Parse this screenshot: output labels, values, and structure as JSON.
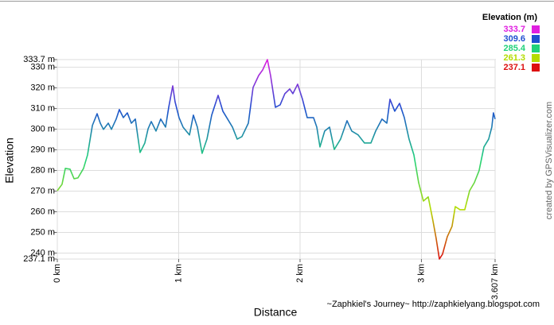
{
  "chart_data": {
    "type": "line",
    "y_label": "Elevation",
    "x_label": "Distance",
    "credit": "created by GPSVisualizer.com",
    "footer": "~Zaphkiel's Journey~ http://zaphkielyang.blogspot.com",
    "legend": {
      "title": "Elevation (m)",
      "items": [
        {
          "value": 333.7,
          "color": "#e020e0"
        },
        {
          "value": 309.6,
          "color": "#1f4fd0"
        },
        {
          "value": 285.4,
          "color": "#20d27a"
        },
        {
          "value": 261.3,
          "color": "#b4dc00"
        },
        {
          "value": 237.1,
          "color": "#dd1010"
        }
      ]
    },
    "xlim": [
      0,
      3.607
    ],
    "ylim": [
      237.1,
      333.7
    ],
    "grid": true,
    "xticks": [
      {
        "value": 0,
        "label": "0 km"
      },
      {
        "value": 1,
        "label": "1 km"
      },
      {
        "value": 2,
        "label": "2 km"
      },
      {
        "value": 3,
        "label": "3 km"
      },
      {
        "value": 3.607,
        "label": "3.607 km"
      }
    ],
    "yticks": [
      {
        "value": 237.1,
        "label": "237.1 m"
      },
      {
        "value": 240,
        "label": "240 m"
      },
      {
        "value": 250,
        "label": "250 m"
      },
      {
        "value": 260,
        "label": "260 m"
      },
      {
        "value": 270,
        "label": "270 m"
      },
      {
        "value": 280,
        "label": "280 m"
      },
      {
        "value": 290,
        "label": "290 m"
      },
      {
        "value": 300,
        "label": "300 m"
      },
      {
        "value": 310,
        "label": "310 m"
      },
      {
        "value": 320,
        "label": "320 m"
      },
      {
        "value": 330,
        "label": "330 m"
      },
      {
        "value": 333.7,
        "label": "333.7 m"
      }
    ],
    "x": [
      0,
      0.039,
      0.066,
      0.105,
      0.138,
      0.17,
      0.216,
      0.249,
      0.289,
      0.328,
      0.354,
      0.38,
      0.42,
      0.446,
      0.485,
      0.511,
      0.544,
      0.577,
      0.61,
      0.643,
      0.682,
      0.721,
      0.748,
      0.774,
      0.813,
      0.852,
      0.892,
      0.918,
      0.951,
      0.97,
      1.003,
      1.036,
      1.089,
      1.121,
      1.154,
      1.193,
      1.233,
      1.272,
      1.325,
      1.364,
      1.403,
      1.443,
      1.482,
      1.521,
      1.574,
      1.613,
      1.659,
      1.692,
      1.731,
      1.757,
      1.797,
      1.836,
      1.875,
      1.915,
      1.941,
      1.98,
      2.02,
      2.059,
      2.111,
      2.138,
      2.164,
      2.203,
      2.243,
      2.282,
      2.334,
      2.387,
      2.426,
      2.479,
      2.531,
      2.584,
      2.623,
      2.675,
      2.715,
      2.741,
      2.78,
      2.82,
      2.859,
      2.898,
      2.938,
      2.977,
      3.016,
      3.056,
      3.095,
      3.121,
      3.148,
      3.174,
      3.213,
      3.252,
      3.279,
      3.318,
      3.357,
      3.397,
      3.436,
      3.475,
      3.515,
      3.554,
      3.58,
      3.593,
      3.607
    ],
    "values": [
      270.2,
      273.3,
      281.0,
      280.6,
      276.0,
      276.4,
      281.0,
      287.5,
      301.8,
      307.5,
      302.9,
      299.9,
      302.9,
      299.9,
      304.9,
      309.5,
      305.6,
      307.9,
      302.9,
      304.9,
      288.7,
      293.3,
      300.2,
      303.7,
      299.1,
      304.9,
      301.0,
      310.6,
      321.0,
      313.3,
      305.6,
      301.0,
      297.2,
      306.8,
      301.0,
      288.3,
      295.2,
      306.8,
      316.4,
      308.7,
      304.9,
      301.0,
      295.2,
      296.4,
      302.9,
      320.2,
      326.0,
      328.7,
      333.7,
      326.0,
      310.6,
      311.8,
      317.2,
      319.5,
      317.2,
      321.8,
      314.5,
      305.6,
      305.6,
      301.0,
      291.4,
      299.1,
      301.0,
      290.2,
      295.2,
      304.1,
      299.1,
      297.2,
      293.3,
      293.3,
      299.1,
      304.9,
      302.9,
      314.5,
      308.7,
      312.5,
      305.6,
      295.2,
      287.5,
      274.1,
      265.2,
      267.2,
      255.6,
      247.2,
      237.1,
      239.5,
      247.9,
      252.9,
      262.5,
      261.0,
      261.0,
      270.2,
      274.1,
      279.9,
      291.4,
      295.2,
      301.0,
      307.9,
      304.9
    ]
  }
}
